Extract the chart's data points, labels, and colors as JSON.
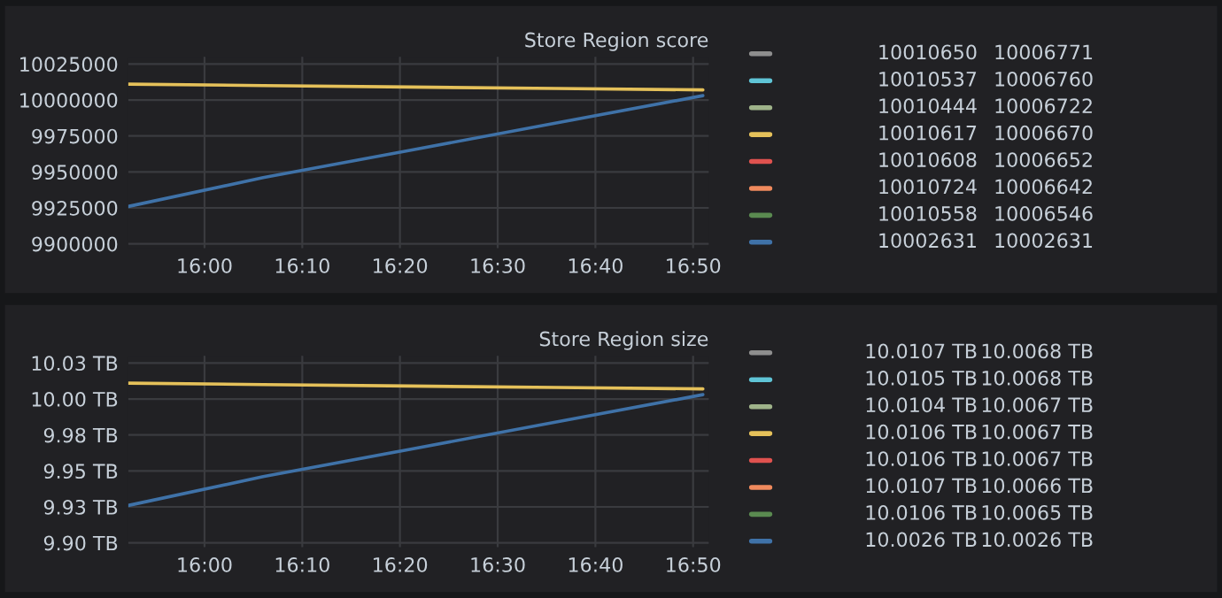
{
  "chart_data": [
    {
      "type": "line",
      "title": "Store Region score",
      "x": [
        15.87,
        16.1,
        16.35,
        16.6,
        16.85
      ],
      "xlim": [
        15.87,
        16.86
      ],
      "xticks": [
        {
          "value": 16.0,
          "label": "16:00"
        },
        {
          "value": 16.1667,
          "label": "16:10"
        },
        {
          "value": 16.3333,
          "label": "16:20"
        },
        {
          "value": 16.5,
          "label": "16:30"
        },
        {
          "value": 16.6667,
          "label": "16:40"
        },
        {
          "value": 16.8333,
          "label": "16:50"
        }
      ],
      "ylim": [
        9897000,
        10030000
      ],
      "yticks": [
        9900000,
        9925000,
        9950000,
        9975000,
        10000000,
        10025000
      ],
      "grid": true,
      "line_style": "solid",
      "series": [
        {
          "color": "#8e8e8e",
          "values": [
            null,
            null,
            null,
            null,
            null
          ]
        },
        {
          "color": "#5fc4d6",
          "values": [
            null,
            null,
            null,
            null,
            null
          ]
        },
        {
          "color": "#9fb38a",
          "values": [
            null,
            null,
            null,
            null,
            null
          ]
        },
        {
          "color": "#e5c15a",
          "values": [
            10011000,
            10010000,
            10009000,
            10008000,
            10007000
          ]
        },
        {
          "color": "#e0524f",
          "values": [
            null,
            null,
            null,
            null,
            null
          ]
        },
        {
          "color": "#f08a5d",
          "values": [
            null,
            null,
            null,
            null,
            null
          ]
        },
        {
          "color": "#5a8a50",
          "values": [
            null,
            null,
            null,
            null,
            null
          ]
        },
        {
          "color": "#3f72a8",
          "values": [
            9926000,
            9946000,
            9965000,
            9984000,
            10003000
          ]
        }
      ],
      "annotations": [
        "10010650",
        "10006771",
        "10010537",
        "10006760",
        "10010444",
        "10006722",
        "10010617",
        "10006670",
        "10010608",
        "10006652",
        "10010724",
        "10006642",
        "10010558",
        "10006546",
        "10002631",
        "10002631"
      ]
    },
    {
      "type": "line",
      "title": "Store Region size",
      "x": [
        15.87,
        16.1,
        16.35,
        16.6,
        16.85
      ],
      "xlim": [
        15.87,
        16.86
      ],
      "xticks": [
        {
          "value": 16.0,
          "label": "16:00"
        },
        {
          "value": 16.1667,
          "label": "16:10"
        },
        {
          "value": 16.3333,
          "label": "16:20"
        },
        {
          "value": 16.5,
          "label": "16:30"
        },
        {
          "value": 16.6667,
          "label": "16:40"
        },
        {
          "value": 16.8333,
          "label": "16:50"
        }
      ],
      "ylim": [
        9.897,
        10.03
      ],
      "yticks": [
        {
          "value": 9.9,
          "label": "9.90 TB"
        },
        {
          "value": 9.925,
          "label": "9.93 TB"
        },
        {
          "value": 9.95,
          "label": "9.95 TB"
        },
        {
          "value": 9.975,
          "label": "9.98 TB"
        },
        {
          "value": 10.0,
          "label": "10.00 TB"
        },
        {
          "value": 10.025,
          "label": "10.03 TB"
        }
      ],
      "grid": true,
      "line_style": "solid",
      "series": [
        {
          "color": "#8e8e8e",
          "values": [
            null,
            null,
            null,
            null,
            null
          ]
        },
        {
          "color": "#5fc4d6",
          "values": [
            null,
            null,
            null,
            null,
            null
          ]
        },
        {
          "color": "#9fb38a",
          "values": [
            null,
            null,
            null,
            null,
            null
          ]
        },
        {
          "color": "#e5c15a",
          "values": [
            10.011,
            10.01,
            10.009,
            10.008,
            10.007
          ]
        },
        {
          "color": "#e0524f",
          "values": [
            null,
            null,
            null,
            null,
            null
          ]
        },
        {
          "color": "#f08a5d",
          "values": [
            null,
            null,
            null,
            null,
            null
          ]
        },
        {
          "color": "#5a8a50",
          "values": [
            null,
            null,
            null,
            null,
            null
          ]
        },
        {
          "color": "#3f72a8",
          "values": [
            9.926,
            9.946,
            9.965,
            9.984,
            10.003
          ]
        }
      ],
      "annotations": [
        "10.0107 TB",
        "10.0068 TB",
        "10.0105 TB",
        "10.0068 TB",
        "10.0104 TB",
        "10.0067 TB",
        "10.0106 TB",
        "10.0067 TB",
        "10.0106 TB",
        "10.0067 TB",
        "10.0107 TB",
        "10.0066 TB",
        "10.0106 TB",
        "10.0065 TB",
        "10.0026 TB",
        "10.0026 TB"
      ]
    }
  ]
}
